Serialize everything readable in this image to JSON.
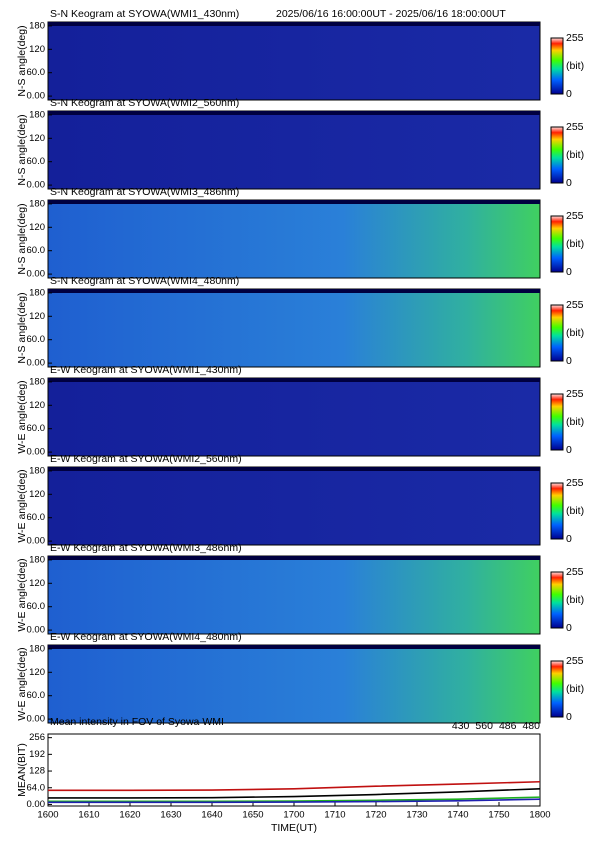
{
  "chart_data": [
    {
      "type": "keogram",
      "title": "S-N Keogram at SYOWA(WMI1_430nm)",
      "subtitle": "2025/06/16 16:00:00UT - 2025/06/16 18:00:00UT",
      "ylabel": "N-S angle(deg)",
      "ylim": [
        -10,
        190
      ],
      "yticks": [
        {
          "value": 0,
          "label": "0.00"
        },
        {
          "value": 60,
          "label": "60.0"
        },
        120,
        180
      ],
      "colorbar_ticks": [
        0,
        255
      ],
      "colorbar_label": "(bit)"
    },
    {
      "type": "keogram",
      "title": "S-N Keogram at SYOWA(WMI2_560nm)",
      "ylabel": "N-S angle(deg)",
      "ylim": [
        -10,
        190
      ],
      "yticks": [
        {
          "value": 0,
          "label": "0.00"
        },
        {
          "value": 60,
          "label": "60.0"
        },
        120,
        180
      ],
      "colorbar_ticks": [
        0,
        255
      ],
      "colorbar_label": "(bit)"
    },
    {
      "type": "keogram",
      "title": "S-N Keogram at SYOWA(WMI3_486nm)",
      "ylabel": "N-S angle(deg)",
      "ylim": [
        -10,
        190
      ],
      "yticks": [
        {
          "value": 0,
          "label": "0.00"
        },
        {
          "value": 60,
          "label": "60.0"
        },
        120,
        180
      ],
      "colorbar_ticks": [
        0,
        255
      ],
      "colorbar_label": "(bit)"
    },
    {
      "type": "keogram",
      "title": "S-N Keogram at SYOWA(WMI4_480nm)",
      "ylabel": "N-S angle(deg)",
      "ylim": [
        -10,
        190
      ],
      "yticks": [
        {
          "value": 0,
          "label": "0.00"
        },
        {
          "value": 60,
          "label": "60.0"
        },
        120,
        180
      ],
      "colorbar_ticks": [
        0,
        255
      ],
      "colorbar_label": "(bit)"
    },
    {
      "type": "keogram",
      "title": "E-W Keogram at SYOWA(WMI1_430nm)",
      "ylabel": "W-E angle(deg)",
      "ylim": [
        -10,
        190
      ],
      "yticks": [
        {
          "value": 0,
          "label": "0.00"
        },
        {
          "value": 60,
          "label": "60.0"
        },
        120,
        180
      ],
      "colorbar_ticks": [
        0,
        255
      ],
      "colorbar_label": "(bit)"
    },
    {
      "type": "keogram",
      "title": "E-W Keogram at SYOWA(WMI2_560nm)",
      "ylabel": "W-E angle(deg)",
      "ylim": [
        -10,
        190
      ],
      "yticks": [
        {
          "value": 0,
          "label": "0.00"
        },
        {
          "value": 60,
          "label": "60.0"
        },
        120,
        180
      ],
      "colorbar_ticks": [
        0,
        255
      ],
      "colorbar_label": "(bit)"
    },
    {
      "type": "keogram",
      "title": "E-W Keogram at SYOWA(WMI3_486nm)",
      "ylabel": "W-E angle(deg)",
      "ylim": [
        -10,
        190
      ],
      "yticks": [
        {
          "value": 0,
          "label": "0.00"
        },
        {
          "value": 60,
          "label": "60.0"
        },
        120,
        180
      ],
      "colorbar_ticks": [
        0,
        255
      ],
      "colorbar_label": "(bit)"
    },
    {
      "type": "keogram",
      "title": "E-W Keogram at SYOWA(WMI4_480nm)",
      "ylabel": "W-E angle(deg)",
      "ylim": [
        -10,
        190
      ],
      "yticks": [
        {
          "value": 0,
          "label": "0.00"
        },
        {
          "value": 60,
          "label": "60.0"
        },
        120,
        180
      ],
      "colorbar_ticks": [
        0,
        255
      ],
      "colorbar_label": "(bit)"
    },
    {
      "type": "line",
      "title": "Mean intensity in FOV of Syowa WMI",
      "ylabel": "MEAN(BIT)",
      "xlabel": "TIME(UT)",
      "x": [
        0,
        20,
        40,
        60,
        80,
        100,
        120
      ],
      "xlim": [
        0,
        120
      ],
      "xticks": [
        {
          "value": 0,
          "label": "1600"
        },
        {
          "value": 10,
          "label": "1610"
        },
        {
          "value": 20,
          "label": "1620"
        },
        {
          "value": 30,
          "label": "1630"
        },
        {
          "value": 40,
          "label": "1640"
        },
        {
          "value": 50,
          "label": "1650"
        },
        {
          "value": 60,
          "label": "1700"
        },
        {
          "value": 70,
          "label": "1710"
        },
        {
          "value": 80,
          "label": "1720"
        },
        {
          "value": 90,
          "label": "1730"
        },
        {
          "value": 100,
          "label": "1740"
        },
        {
          "value": 110,
          "label": "1750"
        },
        {
          "value": 120,
          "label": "1800"
        }
      ],
      "ylim": [
        -6,
        270
      ],
      "yticks": [
        {
          "value": 0,
          "label": "0.00"
        },
        {
          "value": 64,
          "label": "64.0"
        },
        128,
        192,
        256
      ],
      "series": [
        {
          "name": "430",
          "color": "#1f1fb0",
          "values": [
            8,
            8,
            8,
            9,
            11,
            14,
            20
          ]
        },
        {
          "name": "560",
          "color": "#1fb01f",
          "values": [
            12,
            12,
            12,
            13,
            16,
            20,
            28
          ]
        },
        {
          "name": "486",
          "color": "#c01010",
          "values": [
            54,
            54,
            55,
            60,
            70,
            78,
            87
          ]
        },
        {
          "name": "480",
          "color": "#000000",
          "values": [
            25,
            25,
            26,
            30,
            38,
            48,
            60
          ]
        }
      ]
    }
  ]
}
